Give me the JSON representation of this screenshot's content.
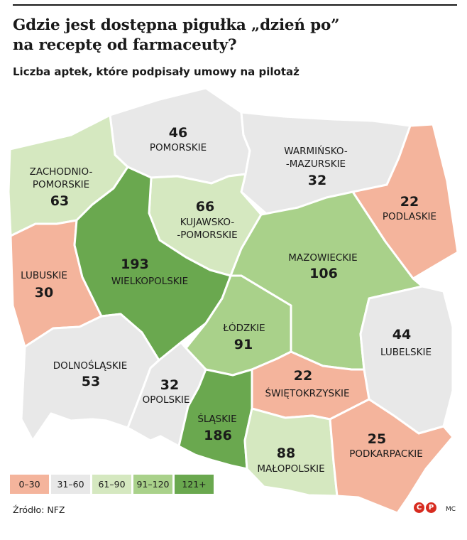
{
  "header": {
    "title_line1": "Gdzie jest dostępna pigułka „dzień po”",
    "title_line2": "na receptę od farmaceuty?",
    "subtitle": "Liczba aptek, które podpisały umowy na pilotaż"
  },
  "colors": {
    "bin_0_30": "#f4b49c",
    "bin_31_60": "#e8e8e8",
    "bin_61_90": "#d5e8c0",
    "bin_91_120": "#a9d18a",
    "bin_121_plus": "#6aa84f",
    "stroke": "#ffffff"
  },
  "regions": {
    "pomorskie": {
      "name": "POMORSKIE",
      "value": "46",
      "bin": "31_60"
    },
    "warminsko": {
      "name_line1": "WARMIŃSKO-",
      "name_line2": "-MAZURSKIE",
      "value": "32",
      "bin": "31_60"
    },
    "zachodnio": {
      "name_line1": "ZACHODNIO-",
      "name_line2": "POMORSKIE",
      "value": "63",
      "bin": "61_90"
    },
    "podlaskie": {
      "name": "PODLASKIE",
      "value": "22",
      "bin": "0_30"
    },
    "kujawsko": {
      "name_line1": "KUJAWSKO-",
      "name_line2": "-POMORSKIE",
      "value": "66",
      "bin": "61_90"
    },
    "lubuskie": {
      "name": "LUBUSKIE",
      "value": "30",
      "bin": "0_30"
    },
    "wielkopolskie": {
      "name": "WIELKOPOLSKIE",
      "value": "193",
      "bin": "121_plus"
    },
    "mazowieckie": {
      "name": "MAZOWIECKIE",
      "value": "106",
      "bin": "91_120"
    },
    "lodzkie": {
      "name": "ŁÓDZKIE",
      "value": "91",
      "bin": "91_120"
    },
    "lubelskie": {
      "name": "LUBELSKIE",
      "value": "44",
      "bin": "31_60"
    },
    "dolnoslaskie": {
      "name": "DOLNOŚLĄSKIE",
      "value": "53",
      "bin": "31_60"
    },
    "opolskie": {
      "name": "OPOLSKIE",
      "value": "32",
      "bin": "31_60"
    },
    "swietokrzyskie": {
      "name": "ŚWIĘTOKRZYSKIE",
      "value": "22",
      "bin": "0_30"
    },
    "slaskie": {
      "name": "ŚLĄSKIE",
      "value": "186",
      "bin": "121_plus"
    },
    "malopolskie": {
      "name": "MAŁOPOLSKIE",
      "value": "88",
      "bin": "61_90"
    },
    "podkarpackie": {
      "name": "PODKARPACKIE",
      "value": "25",
      "bin": "0_30"
    }
  },
  "legend": [
    {
      "label": "0–30",
      "bin": "0_30"
    },
    {
      "label": "31–60",
      "bin": "31_60"
    },
    {
      "label": "61–90",
      "bin": "61_90"
    },
    {
      "label": "91–120",
      "bin": "91_120"
    },
    {
      "label": "121+",
      "bin": "121_plus"
    }
  ],
  "footer": {
    "source": "Źródło: NFZ",
    "logo_left": "C",
    "logo_right": "P",
    "author": "MC"
  }
}
